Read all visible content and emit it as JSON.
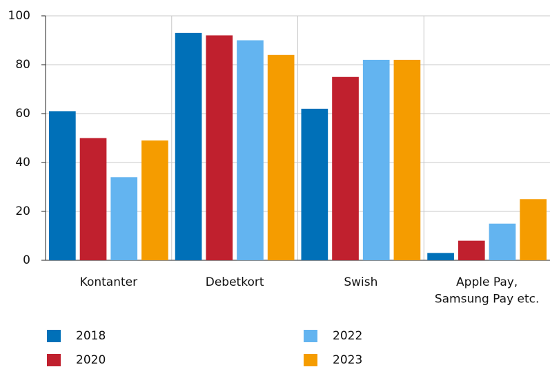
{
  "chart_data": {
    "type": "bar",
    "categories": [
      "Kontanter",
      "Debetkort",
      "Swish",
      "Apple Pay,\nSamsung Pay etc."
    ],
    "series": [
      {
        "name": "2018",
        "color": "#0070b8",
        "values": [
          61,
          93,
          62,
          3
        ]
      },
      {
        "name": "2020",
        "color": "#c0202e",
        "values": [
          50,
          92,
          75,
          8
        ]
      },
      {
        "name": "2022",
        "color": "#63b4f0",
        "values": [
          34,
          90,
          82,
          15
        ]
      },
      {
        "name": "2023",
        "color": "#f59c00",
        "values": [
          49,
          84,
          82,
          25
        ]
      }
    ],
    "ylim": [
      0,
      100
    ],
    "yticks": [
      0,
      20,
      40,
      60,
      80,
      100
    ],
    "grid": true
  }
}
